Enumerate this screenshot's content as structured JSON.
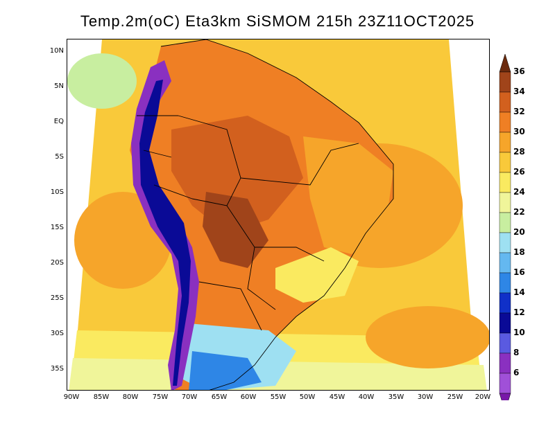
{
  "title": "Temp.2m(oC) Eta3km SiSMOM 215h 23Z11OCT2025",
  "lat_labels": [
    "10N",
    "5N",
    "EQ",
    "5S",
    "10S",
    "15S",
    "20S",
    "25S",
    "30S",
    "35S"
  ],
  "lon_labels": [
    "90W",
    "85W",
    "80W",
    "75W",
    "70W",
    "65W",
    "60W",
    "55W",
    "50W",
    "45W",
    "40W",
    "35W",
    "30W",
    "25W",
    "20W"
  ],
  "colorbar": {
    "labels": [
      "36",
      "34",
      "32",
      "30",
      "28",
      "26",
      "24",
      "22",
      "20",
      "18",
      "16",
      "14",
      "12",
      "10",
      "8",
      "6"
    ],
    "colors": [
      "#6b2a0e",
      "#a0441a",
      "#d2601e",
      "#ef7f24",
      "#f6a52a",
      "#f9c93a",
      "#faea60",
      "#f0f59a",
      "#c8eea0",
      "#9ee0f2",
      "#64b8f0",
      "#2e86e6",
      "#1030c8",
      "#0a0a96",
      "#5a5ae0",
      "#8a30c0",
      "#a050d8",
      "#7818a8"
    ]
  }
}
